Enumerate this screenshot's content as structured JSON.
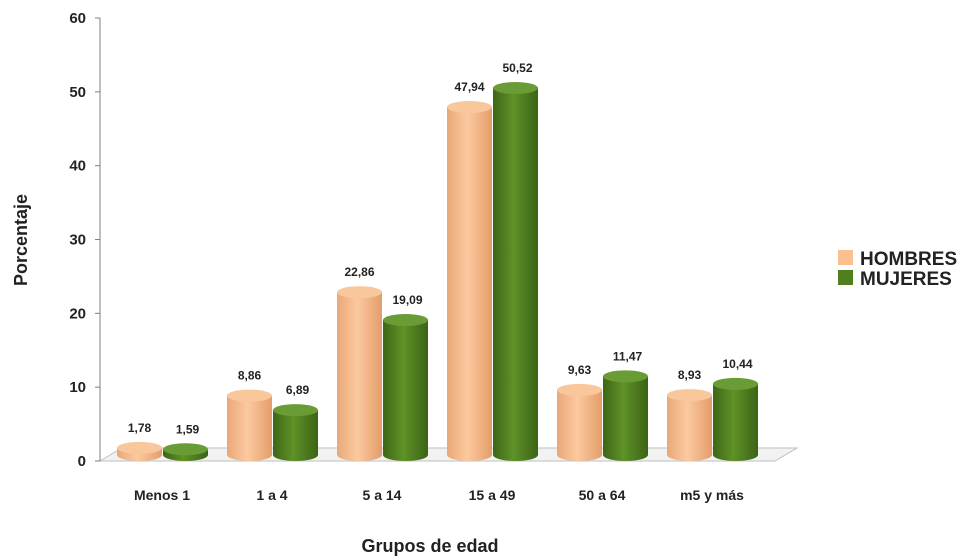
{
  "chart_data": {
    "type": "bar",
    "title": "",
    "xlabel": "Grupos de edad",
    "ylabel": "Porcentaje",
    "categories": [
      "Menos 1",
      "1 a 4",
      "5 a 14",
      "15 a 49",
      "50 a 64",
      "m5 y más"
    ],
    "series": [
      {
        "name": "HOMBRES",
        "values": [
          1.78,
          8.86,
          22.86,
          47.94,
          9.63,
          8.93
        ],
        "labels": [
          "1,78",
          "8,86",
          "22,86",
          "47,94",
          "9,63",
          "8,93"
        ]
      },
      {
        "name": "MUJERES",
        "values": [
          1.59,
          6.89,
          19.09,
          50.52,
          11.47,
          10.44
        ],
        "labels": [
          "1,59",
          "6,89",
          "19,09",
          "50,52",
          "11,47",
          "10,44"
        ]
      }
    ],
    "ylim": [
      0,
      60
    ],
    "yticks": [
      0,
      10,
      20,
      30,
      40,
      50,
      60
    ],
    "legend_position": "right",
    "grid": false,
    "colors": {
      "HOMBRES": "#fac090",
      "MUJERES": "#4f7f1f"
    }
  }
}
